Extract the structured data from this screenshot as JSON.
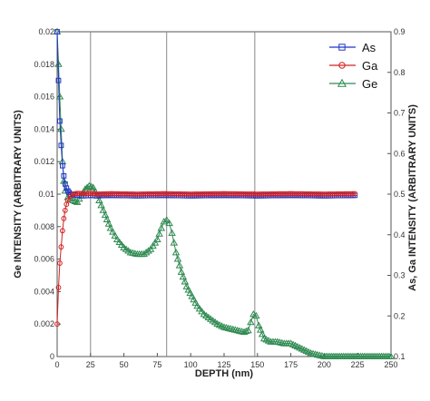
{
  "chart_data": {
    "type": "line",
    "xlabel": "DEPTH (nm)",
    "ylabel_left": "Ge INTENSITY (ARBITRARY UNITS)",
    "ylabel_right": "As, Ga INTENSITY (ARBITRARY UNITS)",
    "xlim": [
      0,
      250
    ],
    "ylim_left": [
      0,
      0.02
    ],
    "ylim_right": [
      0.1,
      0.9
    ],
    "x_ticks": [
      "0",
      "25",
      "50",
      "75",
      "100",
      "125",
      "150",
      "175",
      "200",
      "225",
      "250"
    ],
    "y_left_ticks": [
      "0",
      "0.002",
      "0.004",
      "0.006",
      "0.008",
      "0.01",
      "0.012",
      "0.014",
      "0.016",
      "0.018",
      "0.02"
    ],
    "y_right_ticks": [
      "0.1",
      "0.2",
      "0.3",
      "0.4",
      "0.5",
      "0.6",
      "0.7",
      "0.8",
      "0.9"
    ],
    "vertical_lines_x": [
      25,
      82,
      148
    ],
    "legend_position": "top-right",
    "series": [
      {
        "name": "As",
        "color": "#1f35c8",
        "marker": "square",
        "axis": "right",
        "points": [
          [
            0,
            0.9
          ],
          [
            1,
            0.78
          ],
          [
            2,
            0.68
          ],
          [
            3,
            0.62
          ],
          [
            4,
            0.57
          ],
          [
            5,
            0.545
          ],
          [
            6,
            0.525
          ],
          [
            7,
            0.515
          ],
          [
            8,
            0.508
          ],
          [
            9,
            0.504
          ],
          [
            10,
            0.5
          ],
          [
            15,
            0.497
          ],
          [
            20,
            0.496
          ],
          [
            25,
            0.497
          ],
          [
            30,
            0.496
          ],
          [
            40,
            0.497
          ],
          [
            60,
            0.496
          ],
          [
            80,
            0.497
          ],
          [
            100,
            0.496
          ],
          [
            125,
            0.497
          ],
          [
            150,
            0.496
          ],
          [
            175,
            0.497
          ],
          [
            200,
            0.496
          ],
          [
            223,
            0.497
          ]
        ]
      },
      {
        "name": "Ga",
        "color": "#d42020",
        "marker": "circle",
        "axis": "right",
        "points": [
          [
            0,
            0.18
          ],
          [
            1,
            0.27
          ],
          [
            2,
            0.33
          ],
          [
            3,
            0.37
          ],
          [
            4,
            0.41
          ],
          [
            5,
            0.44
          ],
          [
            6,
            0.46
          ],
          [
            7,
            0.475
          ],
          [
            8,
            0.485
          ],
          [
            10,
            0.495
          ],
          [
            12,
            0.5
          ],
          [
            15,
            0.502
          ],
          [
            20,
            0.501
          ],
          [
            25,
            0.502
          ],
          [
            30,
            0.5
          ],
          [
            40,
            0.501
          ],
          [
            60,
            0.5
          ],
          [
            80,
            0.501
          ],
          [
            100,
            0.5
          ],
          [
            125,
            0.501
          ],
          [
            150,
            0.5
          ],
          [
            175,
            0.501
          ],
          [
            200,
            0.5
          ],
          [
            223,
            0.501
          ]
        ]
      },
      {
        "name": "Ge",
        "color": "#2e8a50",
        "marker": "triangle",
        "axis": "left",
        "points": [
          [
            0,
            0.02
          ],
          [
            1,
            0.018
          ],
          [
            2,
            0.016
          ],
          [
            3,
            0.014
          ],
          [
            4,
            0.012
          ],
          [
            5,
            0.0108
          ],
          [
            6,
            0.0102
          ],
          [
            8,
            0.0098
          ],
          [
            10,
            0.0097
          ],
          [
            12,
            0.0096
          ],
          [
            15,
            0.0095
          ],
          [
            18,
            0.0099
          ],
          [
            21,
            0.0103
          ],
          [
            24,
            0.0105
          ],
          [
            27,
            0.0104
          ],
          [
            30,
            0.0099
          ],
          [
            33,
            0.0093
          ],
          [
            36,
            0.0087
          ],
          [
            40,
            0.0079
          ],
          [
            45,
            0.0072
          ],
          [
            50,
            0.0067
          ],
          [
            55,
            0.0064
          ],
          [
            60,
            0.0063
          ],
          [
            65,
            0.0063
          ],
          [
            70,
            0.0066
          ],
          [
            75,
            0.0072
          ],
          [
            78,
            0.0079
          ],
          [
            80,
            0.0083
          ],
          [
            82,
            0.0084
          ],
          [
            84,
            0.0082
          ],
          [
            86,
            0.0076
          ],
          [
            89,
            0.0064
          ],
          [
            93,
            0.0052
          ],
          [
            97,
            0.0043
          ],
          [
            101,
            0.0037
          ],
          [
            105,
            0.0031
          ],
          [
            110,
            0.0026
          ],
          [
            115,
            0.0023
          ],
          [
            120,
            0.002
          ],
          [
            125,
            0.0018
          ],
          [
            130,
            0.0017
          ],
          [
            135,
            0.0016
          ],
          [
            140,
            0.0015
          ],
          [
            143,
            0.0016
          ],
          [
            145,
            0.0021
          ],
          [
            147,
            0.0026
          ],
          [
            149,
            0.0025
          ],
          [
            151,
            0.0019
          ],
          [
            155,
            0.0011
          ],
          [
            160,
            0.0009
          ],
          [
            165,
            0.0009
          ],
          [
            170,
            0.0008
          ],
          [
            175,
            0.0008
          ],
          [
            180,
            0.0006
          ],
          [
            185,
            0.0004
          ],
          [
            190,
            0.0002
          ],
          [
            195,
            0.0001
          ],
          [
            200,
            0
          ],
          [
            210,
            0
          ],
          [
            220,
            0
          ],
          [
            230,
            0
          ],
          [
            240,
            0
          ],
          [
            250,
            0
          ]
        ]
      }
    ]
  }
}
